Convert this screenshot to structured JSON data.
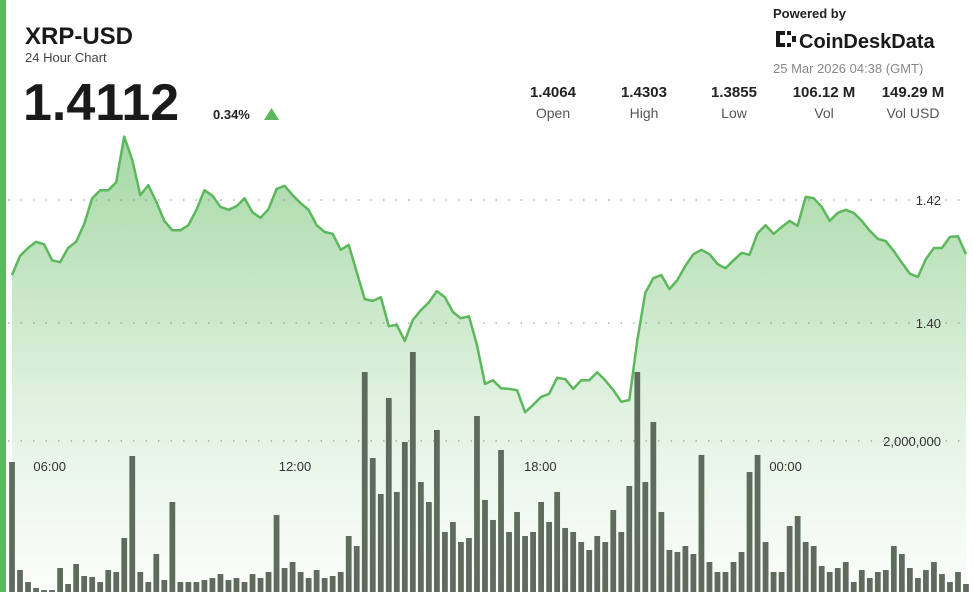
{
  "header": {
    "title": "XRP-USD",
    "subtitle": "24 Hour Chart",
    "price": "1.4112",
    "change": "0.34%",
    "powered_by": "Powered by",
    "brand": "CoinDeskData",
    "timestamp": "25 Mar 2026 04:38 (GMT)"
  },
  "stats": [
    {
      "value": "1.4064",
      "label": "Open"
    },
    {
      "value": "1.4303",
      "label": "High"
    },
    {
      "value": "1.3855",
      "label": "Low"
    },
    {
      "value": "106.12 M",
      "label": "Vol"
    },
    {
      "value": "149.29 M",
      "label": "Vol USD"
    }
  ],
  "chart_data": {
    "type": "combo",
    "xlim": [
      -0.5,
      119.5
    ],
    "xticks": [
      {
        "value": 4.7,
        "label": "06:00"
      },
      {
        "value": 35.3,
        "label": "12:00"
      },
      {
        "value": 65.9,
        "label": "18:00"
      },
      {
        "value": 96.5,
        "label": "00:00"
      }
    ],
    "ylim": [
      1.3563,
      1.4525
    ],
    "yticks": [
      {
        "value": 1.4,
        "label": "1.40"
      },
      {
        "value": 1.42,
        "label": "1.42"
      }
    ],
    "y2lim": [
      0,
      7841000
    ],
    "y2ticks": [
      {
        "value": 2000000,
        "label": "2,000,000"
      }
    ],
    "grid": true,
    "series": [
      {
        "type": "area",
        "color": "#5cb85c",
        "values": [
          1.4078,
          1.4109,
          1.4122,
          1.4132,
          1.4128,
          1.4102,
          1.4099,
          1.4122,
          1.4132,
          1.4161,
          1.4203,
          1.4216,
          1.4216,
          1.4229,
          1.4303,
          1.4265,
          1.4208,
          1.4224,
          1.4197,
          1.4166,
          1.4151,
          1.4151,
          1.4159,
          1.4184,
          1.4216,
          1.4207,
          1.4189,
          1.4184,
          1.419,
          1.4203,
          1.418,
          1.4171,
          1.4185,
          1.4218,
          1.4223,
          1.4208,
          1.4195,
          1.4184,
          1.4159,
          1.4148,
          1.4145,
          1.4119,
          1.4127,
          1.4083,
          1.4039,
          1.4036,
          1.4042,
          1.3995,
          1.3997,
          1.3971,
          1.4005,
          1.4021,
          1.4034,
          1.4052,
          1.4042,
          1.4018,
          1.4008,
          1.4011,
          1.3964,
          1.3901,
          1.3907,
          1.3894,
          1.3893,
          1.3891,
          1.3855,
          1.3867,
          1.388,
          1.3885,
          1.3911,
          1.3909,
          1.3893,
          1.3907,
          1.3907,
          1.392,
          1.3907,
          1.3891,
          1.3872,
          1.3875,
          1.3972,
          1.4049,
          1.4073,
          1.4078,
          1.4055,
          1.407,
          1.4093,
          1.4112,
          1.4119,
          1.4112,
          1.4096,
          1.4089,
          1.4102,
          1.4114,
          1.4111,
          1.4146,
          1.4159,
          1.4145,
          1.4156,
          1.4166,
          1.4158,
          1.4205,
          1.4203,
          1.4189,
          1.4166,
          1.4179,
          1.4184,
          1.4179,
          1.4166,
          1.415,
          1.4137,
          1.4133,
          1.4117,
          1.4098,
          1.408,
          1.4075,
          1.4104,
          1.4122,
          1.4122,
          1.414,
          1.4141,
          1.4112
        ]
      },
      {
        "type": "bar",
        "axis": "y2",
        "color": "#4f5b4f",
        "values": [
          1722000,
          291000,
          132000,
          53000,
          26000,
          26000,
          318000,
          106000,
          371000,
          212000,
          199000,
          132000,
          291000,
          265000,
          715000,
          1801000,
          265000,
          132000,
          503000,
          159000,
          1192000,
          132000,
          132000,
          132000,
          159000,
          185000,
          238000,
          159000,
          185000,
          132000,
          238000,
          185000,
          265000,
          1020000,
          318000,
          397000,
          265000,
          185000,
          291000,
          185000,
          212000,
          265000,
          742000,
          609000,
          2914000,
          1775000,
          1298000,
          2570000,
          1325000,
          1987000,
          3179000,
          1457000,
          1192000,
          2146000,
          795000,
          927000,
          662000,
          715000,
          2331000,
          1219000,
          954000,
          1881000,
          795000,
          1060000,
          742000,
          795000,
          1192000,
          927000,
          1325000,
          848000,
          795000,
          662000,
          556000,
          742000,
          662000,
          1086000,
          795000,
          1404000,
          2914000,
          1457000,
          2252000,
          1060000,
          556000,
          530000,
          609000,
          503000,
          1815000,
          397000,
          265000,
          265000,
          397000,
          530000,
          1589000,
          1815000,
          662000,
          265000,
          265000,
          874000,
          1007000,
          662000,
          609000,
          344000,
          265000,
          318000,
          397000,
          132000,
          291000,
          185000,
          265000,
          291000,
          609000,
          503000,
          318000,
          185000,
          291000,
          397000,
          238000,
          132000,
          265000,
          106000
        ]
      }
    ]
  }
}
